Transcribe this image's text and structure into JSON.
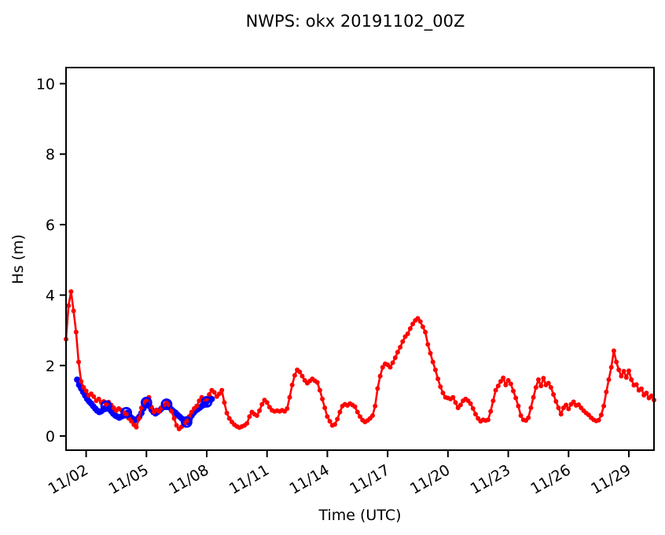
{
  "figure": {
    "background": "#ffffff",
    "frame_color": "#000000"
  },
  "chart_data": {
    "type": "line",
    "title": "NWPS: okx 20191102_00Z",
    "xlabel": "Time (UTC)",
    "ylabel": "Hs (m)",
    "grid": false,
    "legend": "none",
    "y_ticks": [
      0,
      2,
      4,
      6,
      8,
      10
    ],
    "ylim": [
      -0.4,
      10.5
    ],
    "x_axis": {
      "unit": "days from 11/01 00Z",
      "range": [
        0,
        29.25
      ],
      "tick_label_rotation_deg": 30,
      "ticks": [
        {
          "t": 1,
          "label": "11/02"
        },
        {
          "t": 4,
          "label": "11/05"
        },
        {
          "t": 7,
          "label": "11/08"
        },
        {
          "t": 10,
          "label": "11/11"
        },
        {
          "t": 13,
          "label": "11/14"
        },
        {
          "t": 16,
          "label": "11/17"
        },
        {
          "t": 19,
          "label": "11/20"
        },
        {
          "t": 22,
          "label": "11/23"
        },
        {
          "t": 25,
          "label": "11/26"
        },
        {
          "t": 28,
          "label": "11/29"
        }
      ]
    },
    "series": [
      {
        "name": "observed-hs",
        "color": "#0000ff",
        "style": "thick-line-dots",
        "t_start": 0.55,
        "t_step": 0.1,
        "values": [
          1.6,
          1.45,
          1.35,
          1.25,
          1.15,
          1.05,
          0.98,
          0.92,
          0.85,
          0.78,
          0.72,
          0.68,
          0.7,
          0.75,
          0.8,
          0.85,
          0.78,
          0.7,
          0.63,
          0.58,
          0.55,
          0.52,
          0.55,
          0.58,
          0.62,
          0.66,
          0.58,
          0.52,
          0.48,
          0.45,
          0.48,
          0.55,
          0.65,
          0.78,
          0.9,
          0.95,
          0.85,
          0.75,
          0.68,
          0.64,
          0.68,
          0.72,
          0.78,
          0.82,
          0.87,
          0.9,
          0.82,
          0.75,
          0.7,
          0.66,
          0.6,
          0.55,
          0.5,
          0.45,
          0.41,
          0.4,
          0.48,
          0.58,
          0.66,
          0.72,
          0.76,
          0.8,
          0.85,
          0.88,
          0.93,
          1.0,
          1.08,
          1.05
        ]
      },
      {
        "name": "model-hs-forecast",
        "color": "#ff0000",
        "style": "line-dots",
        "t_start": 0,
        "t_step": 0.125,
        "values": [
          2.75,
          3.7,
          4.1,
          3.55,
          2.95,
          2.1,
          1.55,
          1.38,
          1.28,
          1.15,
          1.2,
          1.12,
          1.0,
          1.05,
          0.95,
          0.98,
          0.9,
          0.96,
          0.88,
          0.8,
          0.72,
          0.78,
          0.73,
          0.66,
          0.62,
          0.5,
          0.42,
          0.32,
          0.25,
          0.5,
          0.8,
          0.95,
          1.02,
          1.1,
          0.82,
          0.68,
          0.74,
          0.7,
          0.8,
          0.88,
          1.0,
          0.88,
          0.7,
          0.5,
          0.3,
          0.2,
          0.26,
          0.33,
          0.42,
          0.55,
          0.68,
          0.78,
          0.85,
          1.0,
          1.1,
          1.05,
          1.05,
          1.18,
          1.3,
          1.24,
          1.12,
          1.2,
          1.3,
          0.95,
          0.65,
          0.5,
          0.4,
          0.32,
          0.27,
          0.24,
          0.27,
          0.3,
          0.36,
          0.55,
          0.68,
          0.62,
          0.58,
          0.72,
          0.9,
          1.02,
          0.95,
          0.82,
          0.73,
          0.7,
          0.72,
          0.7,
          0.73,
          0.7,
          0.78,
          1.1,
          1.45,
          1.72,
          1.88,
          1.82,
          1.7,
          1.58,
          1.5,
          1.56,
          1.62,
          1.57,
          1.52,
          1.3,
          1.05,
          0.8,
          0.55,
          0.42,
          0.3,
          0.33,
          0.48,
          0.68,
          0.85,
          0.9,
          0.87,
          0.92,
          0.88,
          0.83,
          0.68,
          0.55,
          0.45,
          0.4,
          0.44,
          0.5,
          0.58,
          0.85,
          1.35,
          1.7,
          1.95,
          2.05,
          2.02,
          1.95,
          2.08,
          2.22,
          2.38,
          2.52,
          2.68,
          2.82,
          2.9,
          3.05,
          3.18,
          3.28,
          3.34,
          3.25,
          3.1,
          2.95,
          2.6,
          2.35,
          2.1,
          1.88,
          1.62,
          1.4,
          1.22,
          1.1,
          1.08,
          1.05,
          1.1,
          0.95,
          0.8,
          0.88,
          1.0,
          1.05,
          1.0,
          0.92,
          0.78,
          0.62,
          0.5,
          0.42,
          0.46,
          0.44,
          0.46,
          0.7,
          1.0,
          1.3,
          1.42,
          1.55,
          1.65,
          1.45,
          1.58,
          1.48,
          1.28,
          1.08,
          0.85,
          0.58,
          0.46,
          0.44,
          0.52,
          0.8,
          1.1,
          1.38,
          1.6,
          1.42,
          1.64,
          1.45,
          1.5,
          1.38,
          1.18,
          0.98,
          0.8,
          0.62,
          0.8,
          0.88,
          0.77,
          0.9,
          0.97,
          0.87,
          0.89,
          0.8,
          0.72,
          0.65,
          0.6,
          0.52,
          0.46,
          0.43,
          0.45,
          0.6,
          0.85,
          1.25,
          1.6,
          1.95,
          2.42,
          2.1,
          1.88,
          1.7,
          1.84,
          1.66,
          1.85,
          1.6,
          1.44,
          1.46,
          1.3,
          1.34,
          1.16,
          1.22,
          1.08,
          1.14,
          1.02
        ]
      },
      {
        "name": "daily-observation-markers",
        "color": "#0000ff",
        "style": "open-circles",
        "t": [
          2,
          3,
          4,
          5,
          6,
          7
        ],
        "values": [
          0.85,
          0.66,
          0.95,
          0.9,
          0.4,
          0.97
        ]
      }
    ]
  }
}
